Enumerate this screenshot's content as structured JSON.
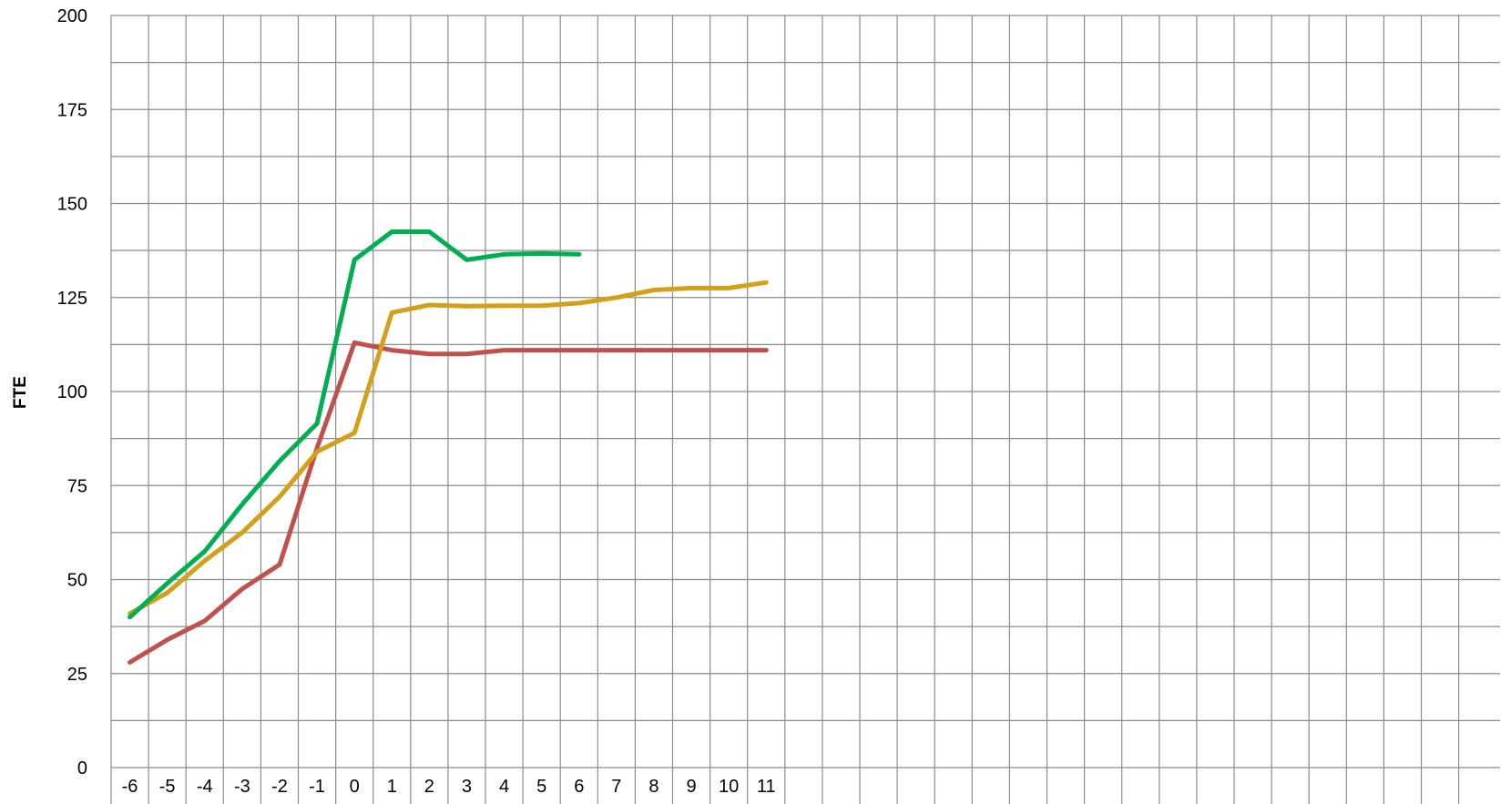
{
  "chart_data": {
    "type": "line",
    "title": "",
    "xlabel": "",
    "ylabel": "FTE",
    "ylim": [
      0,
      200
    ],
    "y_ticks": [
      0,
      25,
      50,
      75,
      100,
      125,
      150,
      175,
      200
    ],
    "y_minor_step": 12.5,
    "grid": true,
    "legend": "none",
    "x_categories": [
      "-6",
      "-5",
      "-4",
      "-3",
      "-2",
      "-1",
      "0",
      "1",
      "2",
      "3",
      "4",
      "5",
      "6",
      "7",
      "8",
      "9",
      "10",
      "11",
      "",
      "",
      "",
      "",
      "",
      "",
      "",
      "",
      "",
      "",
      "",
      "",
      "",
      "",
      "",
      "",
      "",
      ""
    ],
    "series": [
      {
        "color": "#c0504d",
        "values": [
          28,
          34,
          39,
          47.5,
          54,
          85,
          113,
          111,
          110,
          110,
          111,
          111,
          111,
          111,
          111,
          111,
          111,
          111
        ]
      },
      {
        "color": "#d4a017",
        "values": [
          41,
          46.5,
          55,
          62.5,
          72,
          84,
          89,
          121,
          123,
          122.7,
          122.8,
          122.8,
          123.5,
          125,
          127,
          127.5,
          127.5,
          129
        ]
      },
      {
        "color": "#00b050",
        "values": [
          40,
          49,
          57.5,
          70,
          81.5,
          91.5,
          135,
          142.5,
          142.5,
          135,
          136.5,
          136.7,
          136.5
        ]
      }
    ]
  }
}
